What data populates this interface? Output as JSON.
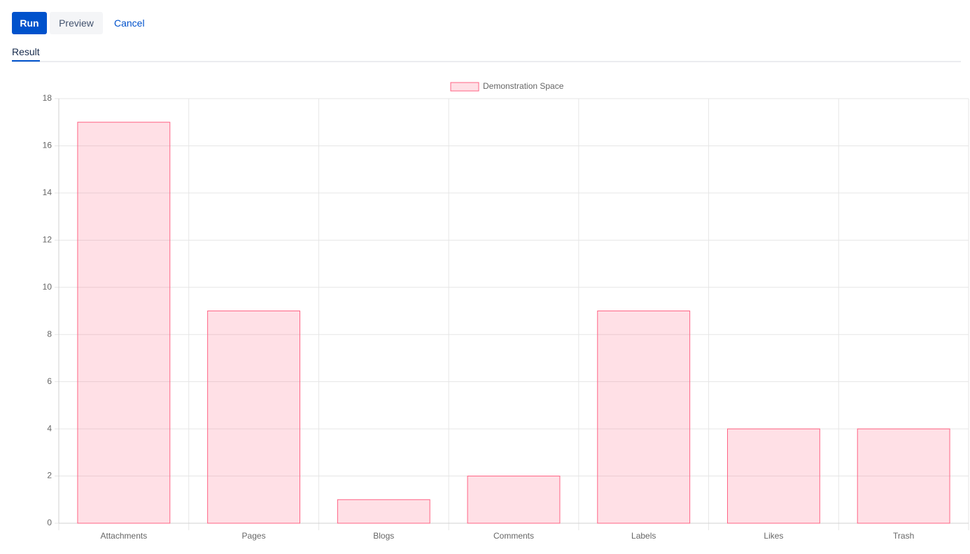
{
  "toolbar": {
    "buttons": [
      "Run",
      "Preview",
      "Cancel"
    ]
  },
  "tabs": [
    "Result"
  ],
  "chart_data": {
    "type": "bar",
    "categories": [
      "Attachments",
      "Pages",
      "Blogs",
      "Comments",
      "Labels",
      "Likes",
      "Trash"
    ],
    "series": [
      {
        "name": "Demonstration Space",
        "color": "#ff6384",
        "values": [
          17,
          9,
          1,
          2,
          9,
          4,
          4
        ]
      }
    ],
    "ylim": [
      0,
      18
    ],
    "yticks": [
      0,
      2,
      4,
      6,
      8,
      10,
      12,
      14,
      16,
      18
    ],
    "grid": true,
    "legend": "top"
  }
}
